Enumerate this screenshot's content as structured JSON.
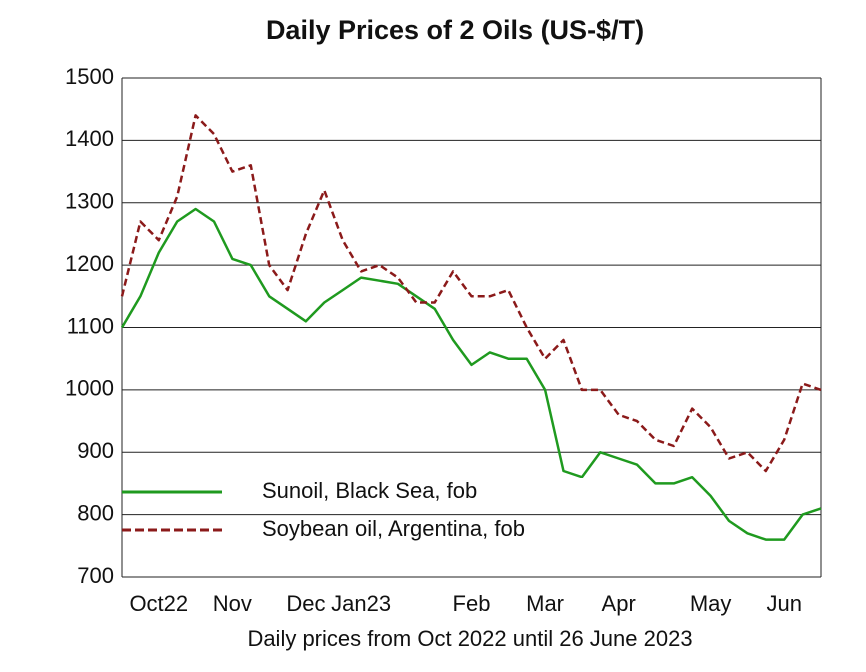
{
  "chart_data": {
    "type": "line",
    "title": "Daily Prices of 2 Oils (US-$/T)",
    "x_label": "Daily prices from Oct 2022 until 26 June 2023",
    "categories": [
      null,
      null,
      "Oct22",
      null,
      null,
      null,
      "Nov",
      null,
      null,
      null,
      "Dec",
      null,
      null,
      "Jan23",
      null,
      null,
      null,
      null,
      null,
      "Feb",
      null,
      null,
      null,
      "Mar",
      null,
      null,
      null,
      "Apr",
      null,
      null,
      null,
      null,
      "May",
      null,
      null,
      null,
      "Jun",
      null,
      null
    ],
    "series": [
      {
        "name": "Sunoil, Black Sea, fob",
        "color": "#1f9a1f",
        "dash": false,
        "values": [
          1100,
          1150,
          1220,
          1270,
          1290,
          1270,
          1210,
          1200,
          1150,
          1130,
          1110,
          1140,
          1160,
          1180,
          1175,
          1170,
          1150,
          1130,
          1080,
          1040,
          1060,
          1050,
          1050,
          1000,
          870,
          860,
          900,
          890,
          880,
          850,
          850,
          860,
          830,
          790,
          770,
          760,
          760,
          800,
          810
        ]
      },
      {
        "name": "Soybean oil, Argentina, fob",
        "color": "#8b1a1a",
        "dash": true,
        "values": [
          1150,
          1270,
          1240,
          1310,
          1440,
          1410,
          1350,
          1360,
          1200,
          1160,
          1250,
          1320,
          1240,
          1190,
          1200,
          1180,
          1140,
          1140,
          1190,
          1150,
          1150,
          1160,
          1100,
          1050,
          1080,
          1000,
          1000,
          960,
          950,
          920,
          910,
          970,
          940,
          890,
          900,
          870,
          920,
          1010,
          1000
        ]
      }
    ],
    "ylim": [
      700,
      1500
    ],
    "yticks": [
      700,
      800,
      900,
      1000,
      1100,
      1200,
      1300,
      1400,
      1500
    ],
    "grid": true,
    "legend": "lower-left"
  }
}
